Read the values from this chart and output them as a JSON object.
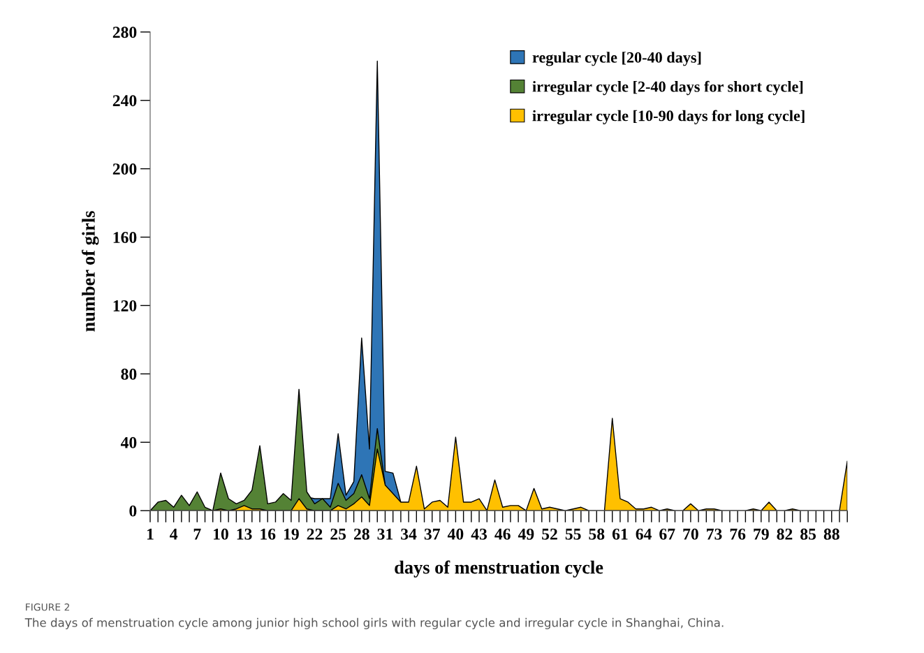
{
  "chart_data": {
    "type": "area",
    "xlabel": "days of menstruation cycle",
    "ylabel": "number of girls",
    "categories": [
      "1",
      null,
      null,
      "4",
      null,
      null,
      "7",
      null,
      null,
      "10",
      null,
      null,
      "13",
      null,
      null,
      "16",
      null,
      null,
      "19",
      null,
      null,
      "22",
      null,
      null,
      "25",
      null,
      null,
      "28",
      null,
      null,
      "31",
      null,
      null,
      "34",
      null,
      null,
      "37",
      null,
      null,
      "40",
      null,
      null,
      "43",
      null,
      null,
      "46",
      null,
      null,
      "49",
      null,
      null,
      "52",
      null,
      null,
      "55",
      null,
      null,
      "58",
      null,
      null,
      "61",
      null,
      null,
      "64",
      null,
      null,
      "67",
      null,
      null,
      "70",
      null,
      null,
      "73",
      null,
      null,
      "76",
      null,
      null,
      "79",
      null,
      null,
      "82",
      null,
      null,
      "85",
      null,
      null,
      "88",
      null,
      null
    ],
    "series": [
      {
        "name": "regular cycle [20-40 days]",
        "color": "#2e75b6",
        "values": [
          null,
          null,
          null,
          null,
          null,
          null,
          null,
          null,
          null,
          null,
          null,
          null,
          null,
          null,
          null,
          null,
          null,
          null,
          null,
          null,
          8,
          7,
          7,
          7,
          45,
          9,
          17,
          101,
          36,
          263,
          23,
          22,
          5,
          null,
          null,
          null,
          null,
          null,
          null,
          null,
          null,
          null,
          null,
          null,
          null,
          null,
          null,
          null,
          null,
          null,
          null,
          null,
          null,
          null,
          null,
          null,
          null,
          null,
          null,
          null,
          null,
          null,
          null,
          null,
          null,
          null,
          null,
          null,
          null,
          null,
          null,
          null,
          null,
          null,
          null,
          null,
          null,
          null,
          null,
          null,
          null,
          null,
          null,
          null,
          null,
          null,
          null,
          null,
          null,
          null
        ]
      },
      {
        "name": "irregular cycle [2-40 days for short cycle]",
        "color": "#548235",
        "values": [
          0,
          5,
          6,
          2,
          9,
          3,
          11,
          2,
          0,
          22,
          7,
          4,
          6,
          12,
          38,
          4,
          5,
          10,
          6,
          71,
          11,
          4,
          7,
          2,
          16,
          6,
          10,
          21,
          7,
          48,
          15,
          null,
          null,
          null,
          null,
          null,
          null,
          null,
          null,
          null,
          null,
          null,
          null,
          null,
          null,
          null,
          null,
          null,
          null,
          null,
          null,
          null,
          null,
          null,
          null,
          null,
          null,
          null,
          null,
          null,
          null,
          null,
          null,
          null,
          null,
          null,
          null,
          null,
          null,
          null,
          null,
          null,
          null,
          null,
          null,
          null,
          null,
          null,
          null,
          null,
          null,
          null,
          null,
          null,
          null,
          null,
          null,
          null,
          null,
          null
        ]
      },
      {
        "name": "irregular cycle [10-90 days for long cycle]",
        "color": "#ffc000",
        "values": [
          null,
          null,
          null,
          null,
          null,
          null,
          null,
          null,
          0,
          1,
          0,
          1,
          3,
          1,
          1,
          0,
          0,
          0,
          0,
          7,
          1,
          0,
          0,
          0,
          3,
          1,
          4,
          8,
          3,
          36,
          15,
          10,
          5,
          5,
          26,
          1,
          5,
          6,
          2,
          43,
          5,
          5,
          7,
          0,
          18,
          2,
          3,
          3,
          0,
          13,
          1,
          2,
          1,
          0,
          1,
          2,
          0,
          0,
          0,
          54,
          7,
          5,
          1,
          1,
          2,
          0,
          1,
          0,
          0,
          4,
          0,
          1,
          1,
          0,
          0,
          0,
          0,
          1,
          0,
          5,
          0,
          0,
          1,
          0,
          0,
          0,
          0,
          0,
          0,
          29
        ]
      }
    ],
    "ylim": [
      0,
      280
    ],
    "yticks": [
      0,
      40,
      80,
      120,
      160,
      200,
      240,
      280
    ],
    "grid": false,
    "legend": "top right",
    "annotations": [
      "FIGURE 2",
      "The days of menstruation cycle among junior high school girls with regular cycle and irregular cycle in Shanghai, China."
    ]
  }
}
